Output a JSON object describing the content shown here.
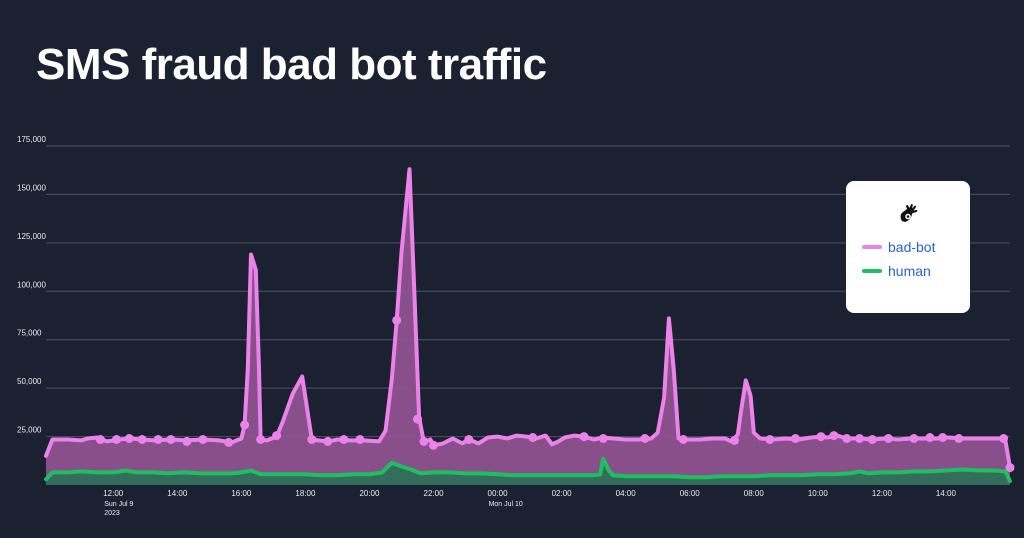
{
  "title": "SMS fraud bad bot traffic",
  "colors": {
    "background": "#1b2130",
    "grid": "#4a5266",
    "bad_bot": "#ea82ea",
    "bad_bot_fill": "#8e5290",
    "human": "#1fbe60",
    "human_fill": "#2f6f5a",
    "legend_text": "#2563d9"
  },
  "legend": {
    "logo_icon": "hand-logo-icon",
    "items": [
      {
        "label": "bad-bot",
        "color": "#ea82ea"
      },
      {
        "label": "human",
        "color": "#1fbe60"
      }
    ]
  },
  "chart_data": {
    "type": "area",
    "title": "SMS fraud bad bot traffic",
    "xlabel": "",
    "ylabel": "",
    "x_unit": "hour",
    "x_range": [
      9.9,
      40.0
    ],
    "ylim": [
      0,
      175000
    ],
    "y_ticks": [
      25000,
      50000,
      75000,
      100000,
      125000,
      150000,
      175000
    ],
    "y_tick_labels": [
      "25,000",
      "50,000",
      "75,000",
      "100,000",
      "125,000",
      "150,000",
      "175,000"
    ],
    "grid": true,
    "legend_position": "right",
    "x_ticks": [
      {
        "x": 12,
        "label": "12:00",
        "sub": [
          "Sun Jul 9",
          "2023"
        ]
      },
      {
        "x": 14,
        "label": "14:00",
        "sub": []
      },
      {
        "x": 16,
        "label": "16:00",
        "sub": []
      },
      {
        "x": 18,
        "label": "18:00",
        "sub": []
      },
      {
        "x": 20,
        "label": "20:00",
        "sub": []
      },
      {
        "x": 22,
        "label": "22:00",
        "sub": []
      },
      {
        "x": 24,
        "label": "00:00",
        "sub": [
          "Mon Jul 10"
        ]
      },
      {
        "x": 26,
        "label": "02:00",
        "sub": []
      },
      {
        "x": 28,
        "label": "04:00",
        "sub": []
      },
      {
        "x": 30,
        "label": "06:00",
        "sub": []
      },
      {
        "x": 32,
        "label": "08:00",
        "sub": []
      },
      {
        "x": 34,
        "label": "10:00",
        "sub": []
      },
      {
        "x": 36,
        "label": "12:00",
        "sub": []
      },
      {
        "x": 38,
        "label": "14:00",
        "sub": []
      }
    ],
    "series": [
      {
        "name": "bad-bot",
        "color": "#ea82ea",
        "points": [
          [
            9.9,
            15000
          ],
          [
            10.1,
            23500
          ],
          [
            10.6,
            23500
          ],
          [
            11.0,
            23000
          ],
          [
            11.2,
            24000
          ],
          [
            11.5,
            24500
          ],
          [
            11.8,
            22500
          ],
          [
            12.2,
            23500
          ],
          [
            12.5,
            24000
          ],
          [
            12.9,
            23500
          ],
          [
            13.3,
            23000
          ],
          [
            13.8,
            23500
          ],
          [
            14.3,
            23000
          ],
          [
            14.8,
            23500
          ],
          [
            15.3,
            23000
          ],
          [
            15.7,
            22000
          ],
          [
            16.0,
            24000
          ],
          [
            16.1,
            31000
          ],
          [
            16.2,
            60000
          ],
          [
            16.3,
            119000
          ],
          [
            16.45,
            111000
          ],
          [
            16.55,
            60000
          ],
          [
            16.6,
            23500
          ],
          [
            16.8,
            23000
          ],
          [
            17.1,
            25000
          ],
          [
            17.3,
            33000
          ],
          [
            17.6,
            47000
          ],
          [
            17.9,
            56000
          ],
          [
            18.2,
            23500
          ],
          [
            18.4,
            23000
          ],
          [
            18.7,
            22500
          ],
          [
            19.0,
            23500
          ],
          [
            19.4,
            23000
          ],
          [
            19.8,
            23000
          ],
          [
            20.3,
            22500
          ],
          [
            20.5,
            28000
          ],
          [
            20.7,
            55000
          ],
          [
            20.85,
            85000
          ],
          [
            21.0,
            120000
          ],
          [
            21.25,
            163000
          ],
          [
            21.4,
            100000
          ],
          [
            21.55,
            35000
          ],
          [
            21.7,
            22000
          ],
          [
            21.9,
            23500
          ],
          [
            22.0,
            20500
          ],
          [
            22.3,
            21500
          ],
          [
            22.6,
            24000
          ],
          [
            22.9,
            21500
          ],
          [
            23.1,
            23500
          ],
          [
            23.4,
            21500
          ],
          [
            23.7,
            24500
          ],
          [
            24.0,
            25000
          ],
          [
            24.3,
            24000
          ],
          [
            24.6,
            25500
          ],
          [
            24.9,
            25000
          ],
          [
            25.2,
            24000
          ],
          [
            25.5,
            25500
          ],
          [
            25.7,
            21000
          ],
          [
            25.9,
            22500
          ],
          [
            26.1,
            24500
          ],
          [
            26.4,
            25500
          ],
          [
            26.7,
            25000
          ],
          [
            27.0,
            23500
          ],
          [
            27.3,
            24500
          ],
          [
            27.6,
            24000
          ],
          [
            28.0,
            23500
          ],
          [
            28.4,
            23500
          ],
          [
            28.8,
            24000
          ],
          [
            29.0,
            27000
          ],
          [
            29.2,
            45000
          ],
          [
            29.35,
            86000
          ],
          [
            29.5,
            60000
          ],
          [
            29.65,
            24000
          ],
          [
            29.9,
            23500
          ],
          [
            30.3,
            23500
          ],
          [
            30.7,
            24000
          ],
          [
            31.1,
            24000
          ],
          [
            31.3,
            22500
          ],
          [
            31.5,
            26000
          ],
          [
            31.6,
            38000
          ],
          [
            31.75,
            54000
          ],
          [
            31.9,
            46000
          ],
          [
            32.0,
            27000
          ],
          [
            32.2,
            24000
          ],
          [
            32.6,
            23500
          ],
          [
            33.0,
            24000
          ],
          [
            33.4,
            23500
          ],
          [
            33.8,
            24500
          ],
          [
            34.1,
            25000
          ],
          [
            34.3,
            24500
          ],
          [
            34.6,
            25500
          ],
          [
            34.9,
            24000
          ],
          [
            35.3,
            24000
          ],
          [
            35.7,
            23500
          ],
          [
            36.1,
            24000
          ],
          [
            36.5,
            23500
          ],
          [
            36.9,
            24000
          ],
          [
            37.3,
            24000
          ],
          [
            37.7,
            24000
          ],
          [
            38.1,
            24500
          ],
          [
            38.5,
            24000
          ],
          [
            38.9,
            24000
          ],
          [
            39.3,
            24000
          ],
          [
            39.7,
            24000
          ],
          [
            39.85,
            23500
          ],
          [
            40.0,
            9000
          ]
        ],
        "markers": [
          [
            11.6,
            23500
          ],
          [
            12.1,
            23500
          ],
          [
            12.5,
            24000
          ],
          [
            12.9,
            23500
          ],
          [
            13.4,
            23500
          ],
          [
            13.8,
            23500
          ],
          [
            14.3,
            22500
          ],
          [
            14.8,
            23500
          ],
          [
            15.6,
            22000
          ],
          [
            16.1,
            31000
          ],
          [
            16.6,
            23500
          ],
          [
            17.1,
            25500
          ],
          [
            18.2,
            23500
          ],
          [
            18.7,
            22500
          ],
          [
            19.2,
            23500
          ],
          [
            19.7,
            23500
          ],
          [
            20.85,
            85000
          ],
          [
            21.5,
            34000
          ],
          [
            21.7,
            22500
          ],
          [
            22.0,
            20500
          ],
          [
            23.1,
            23500
          ],
          [
            25.1,
            24500
          ],
          [
            26.7,
            25000
          ],
          [
            27.3,
            24000
          ],
          [
            28.6,
            24000
          ],
          [
            29.8,
            23500
          ],
          [
            31.4,
            23000
          ],
          [
            32.5,
            23500
          ],
          [
            33.3,
            24000
          ],
          [
            34.1,
            25000
          ],
          [
            34.5,
            25500
          ],
          [
            34.9,
            24000
          ],
          [
            35.3,
            24000
          ],
          [
            35.7,
            23500
          ],
          [
            36.2,
            24000
          ],
          [
            37.0,
            24000
          ],
          [
            37.5,
            24500
          ],
          [
            37.9,
            24500
          ],
          [
            38.4,
            24000
          ],
          [
            39.8,
            24000
          ],
          [
            40.0,
            9000
          ]
        ]
      },
      {
        "name": "human",
        "color": "#1fbe60",
        "points": [
          [
            9.9,
            3000
          ],
          [
            10.1,
            6500
          ],
          [
            10.6,
            6500
          ],
          [
            11.0,
            7000
          ],
          [
            11.5,
            6500
          ],
          [
            12.0,
            6500
          ],
          [
            12.4,
            7500
          ],
          [
            12.7,
            6500
          ],
          [
            13.2,
            6500
          ],
          [
            13.7,
            6000
          ],
          [
            14.2,
            6500
          ],
          [
            14.7,
            6000
          ],
          [
            15.2,
            6000
          ],
          [
            15.7,
            6000
          ],
          [
            16.0,
            6500
          ],
          [
            16.3,
            7500
          ],
          [
            16.6,
            5500
          ],
          [
            17.0,
            5500
          ],
          [
            17.5,
            5500
          ],
          [
            18.0,
            5500
          ],
          [
            18.5,
            5000
          ],
          [
            19.0,
            5000
          ],
          [
            19.5,
            5500
          ],
          [
            20.0,
            5500
          ],
          [
            20.4,
            6500
          ],
          [
            20.7,
            11500
          ],
          [
            21.0,
            9500
          ],
          [
            21.3,
            8000
          ],
          [
            21.6,
            6000
          ],
          [
            22.0,
            6500
          ],
          [
            22.5,
            6500
          ],
          [
            23.0,
            6000
          ],
          [
            23.5,
            6000
          ],
          [
            24.0,
            5500
          ],
          [
            24.5,
            5000
          ],
          [
            25.0,
            5000
          ],
          [
            25.5,
            5000
          ],
          [
            26.0,
            5000
          ],
          [
            26.5,
            5000
          ],
          [
            27.0,
            5000
          ],
          [
            27.2,
            5500
          ],
          [
            27.3,
            13500
          ],
          [
            27.45,
            8000
          ],
          [
            27.6,
            5000
          ],
          [
            28.0,
            4500
          ],
          [
            28.5,
            4500
          ],
          [
            29.0,
            4500
          ],
          [
            29.5,
            4500
          ],
          [
            30.0,
            4000
          ],
          [
            30.5,
            4000
          ],
          [
            31.0,
            4500
          ],
          [
            31.5,
            4500
          ],
          [
            32.0,
            4500
          ],
          [
            32.5,
            5000
          ],
          [
            33.0,
            5000
          ],
          [
            33.5,
            5000
          ],
          [
            34.0,
            5500
          ],
          [
            34.5,
            5500
          ],
          [
            35.0,
            6000
          ],
          [
            35.3,
            7000
          ],
          [
            35.6,
            6000
          ],
          [
            36.0,
            6500
          ],
          [
            36.5,
            6500
          ],
          [
            37.0,
            7000
          ],
          [
            37.5,
            7000
          ],
          [
            38.0,
            7500
          ],
          [
            38.5,
            8000
          ],
          [
            39.0,
            7500
          ],
          [
            39.5,
            7500
          ],
          [
            39.85,
            7000
          ],
          [
            40.0,
            2000
          ]
        ],
        "markers": []
      }
    ]
  }
}
